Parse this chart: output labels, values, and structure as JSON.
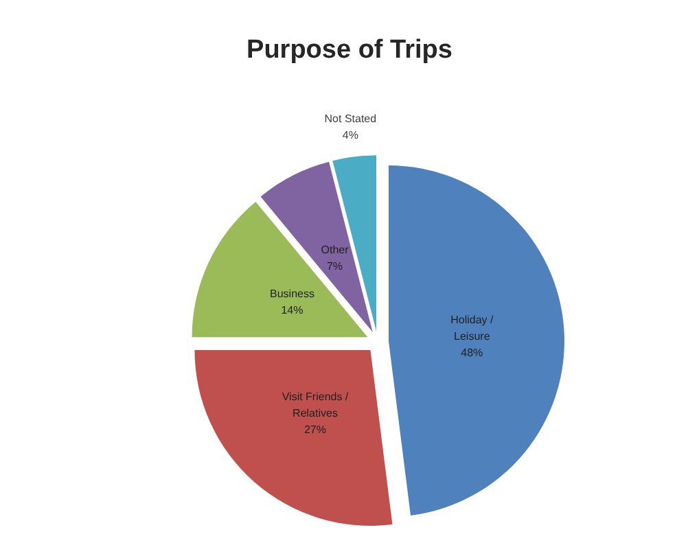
{
  "chart_data": {
    "type": "pie",
    "title": "Purpose of Trips",
    "categories": [
      "Holiday / Leisure",
      "Visit Friends / Relatives",
      "Business",
      "Other",
      "Not Stated"
    ],
    "values": [
      48,
      27,
      14,
      7,
      4
    ],
    "value_labels": [
      "48%",
      "27%",
      "14%",
      "7%",
      "4%"
    ],
    "colors": [
      "#4f81bd",
      "#c0504d",
      "#9bbb59",
      "#8064a2",
      "#4bacc6"
    ],
    "legend": false
  }
}
